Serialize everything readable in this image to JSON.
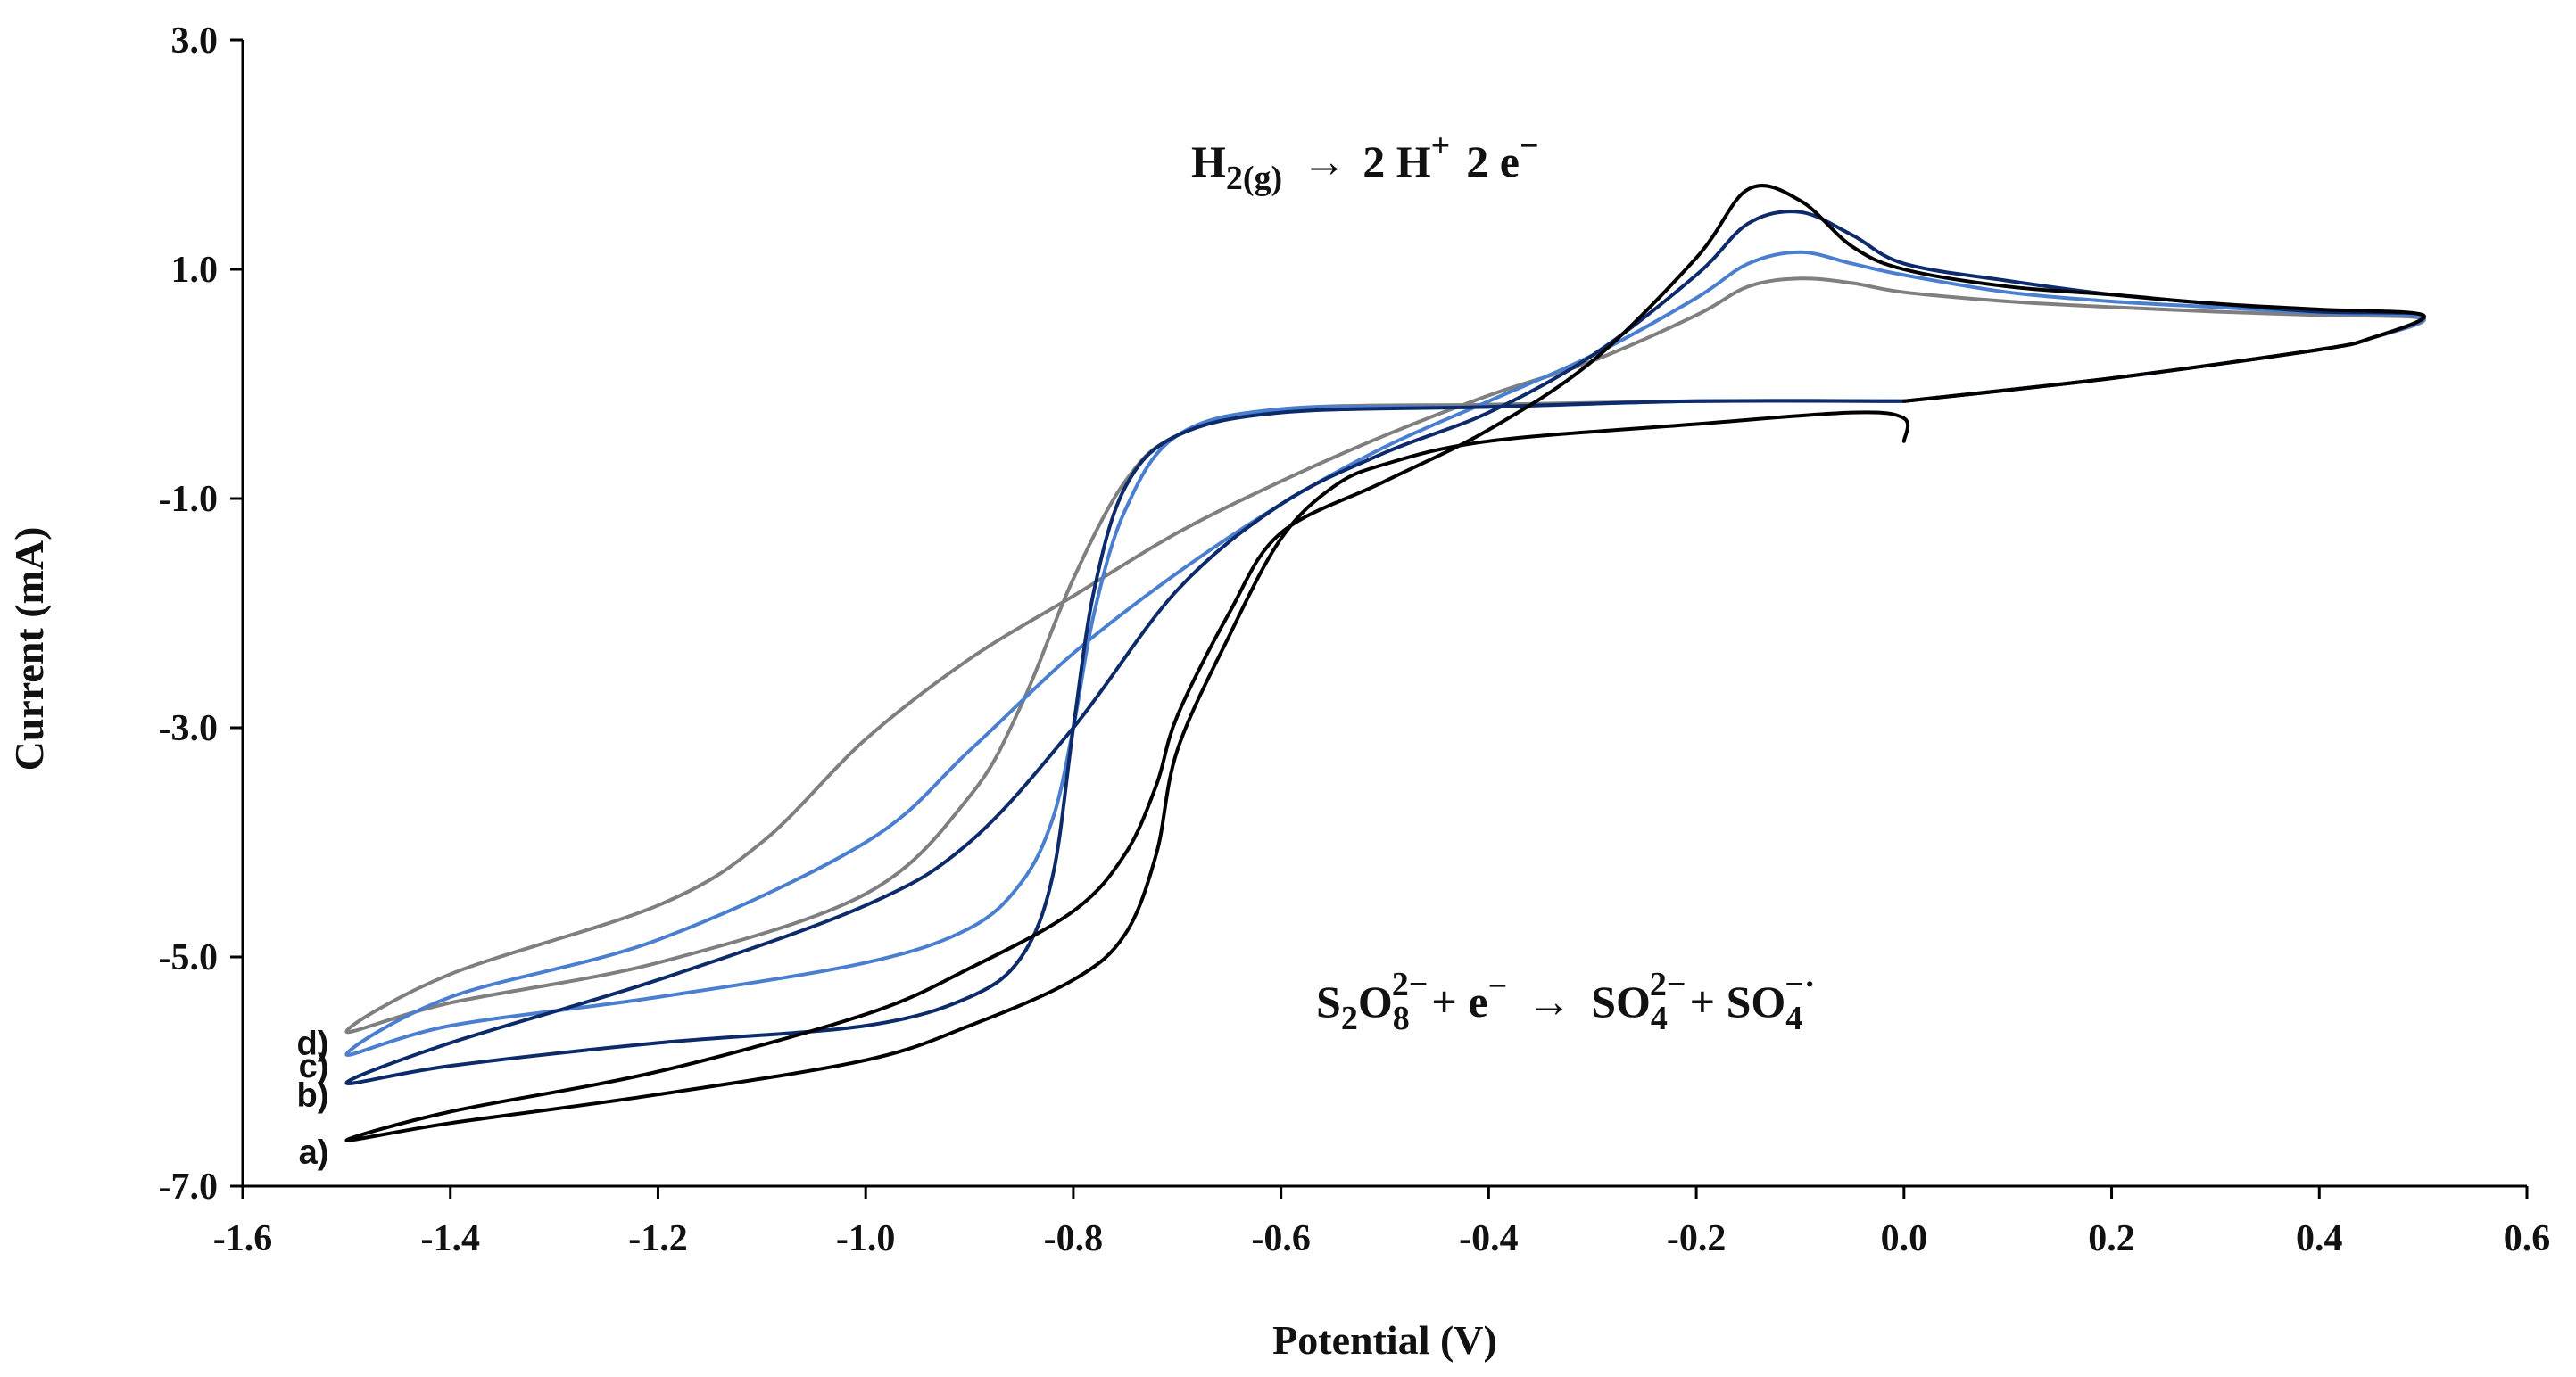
{
  "chart_data": {
    "type": "line",
    "title": "",
    "xlabel": "Potential (V)",
    "ylabel": "Current (mA)",
    "xlim": [
      -1.6,
      0.6
    ],
    "ylim": [
      -7.0,
      3.0
    ],
    "xticks": [
      -1.6,
      -1.4,
      -1.2,
      -1.0,
      -0.8,
      -0.6,
      -0.4,
      -0.2,
      0.0,
      0.2,
      0.4,
      0.6
    ],
    "xtick_labels": [
      "-1.6",
      "-1.4",
      "-1.2",
      "-1.0",
      "-0.8",
      "-0.6",
      "-0.4",
      "-0.2",
      "0.0",
      "0.2",
      "0.4",
      "0.6"
    ],
    "yticks": [
      3.0,
      1.0,
      -1.0,
      -3.0,
      -5.0,
      -7.0
    ],
    "ytick_labels": [
      "3.0",
      "1.0",
      "-1.0",
      "-3.0",
      "-5.0",
      "-7.0"
    ],
    "grid": false,
    "annotations": {
      "oxidation": {
        "lhs": "H",
        "lhs_sub": "2(g)",
        "arrow": "→",
        "rhs": "2 H",
        "rhs_sup": "+",
        "rest": "2 e",
        "rest_sup": "−"
      },
      "reduction": {
        "p1": "S",
        "p1_sub": "2",
        "p2": "O",
        "p2_sub": "8",
        "p2_sup": "2−",
        "p3": "+ e",
        "p3_sup": "−",
        "arrow": "→",
        "p4": "SO",
        "p4_sub": "4",
        "p4_sup": "2−",
        "p5": "+ SO",
        "p5_sub": "4",
        "p5_sup": "−·"
      }
    },
    "series": [
      {
        "name": "a)",
        "color": "#000000",
        "x": [
          0.0,
          0.0,
          -0.05,
          -0.2,
          -0.4,
          -0.5,
          -0.55,
          -0.6,
          -0.65,
          -0.7,
          -0.72,
          -0.75,
          -0.8,
          -0.9,
          -1.0,
          -1.2,
          -1.4,
          -1.5,
          -1.4,
          -1.2,
          -1.0,
          -0.9,
          -0.8,
          -0.75,
          -0.72,
          -0.7,
          -0.65,
          -0.6,
          -0.5,
          -0.4,
          -0.3,
          -0.2,
          -0.15,
          -0.1,
          -0.05,
          0.0,
          0.1,
          0.2,
          0.3,
          0.4,
          0.5,
          0.45,
          0.4,
          0.2,
          0.0
        ],
        "y": [
          -0.5,
          -0.3,
          -0.25,
          -0.35,
          -0.5,
          -0.7,
          -0.9,
          -1.35,
          -2.2,
          -3.2,
          -4.1,
          -4.8,
          -5.2,
          -5.6,
          -5.9,
          -6.2,
          -6.45,
          -6.6,
          -6.35,
          -6.0,
          -5.5,
          -5.1,
          -4.6,
          -4.1,
          -3.5,
          -2.9,
          -2.0,
          -1.3,
          -0.85,
          -0.4,
          0.2,
          1.1,
          1.7,
          1.6,
          1.2,
          1.0,
          0.85,
          0.78,
          0.7,
          0.65,
          0.6,
          0.4,
          0.3,
          0.05,
          -0.15
        ]
      },
      {
        "name": "b)",
        "color": "#0d2b6b",
        "x": [
          0.0,
          -0.2,
          -0.4,
          -0.6,
          -0.7,
          -0.75,
          -0.78,
          -0.8,
          -0.82,
          -0.85,
          -0.9,
          -1.0,
          -1.2,
          -1.4,
          -1.5,
          -1.4,
          -1.2,
          -1.0,
          -0.9,
          -0.8,
          -0.7,
          -0.6,
          -0.5,
          -0.4,
          -0.3,
          -0.2,
          -0.15,
          -0.1,
          -0.05,
          0.0,
          0.1,
          0.2,
          0.3,
          0.4,
          0.5,
          0.45,
          0.4,
          0.2,
          0.0
        ],
        "y": [
          -0.15,
          -0.15,
          -0.2,
          -0.25,
          -0.45,
          -0.9,
          -1.8,
          -3.0,
          -4.3,
          -5.0,
          -5.35,
          -5.6,
          -5.75,
          -5.95,
          -6.1,
          -5.75,
          -5.2,
          -4.55,
          -4.0,
          -3.0,
          -1.8,
          -1.05,
          -0.6,
          -0.25,
          0.25,
          0.95,
          1.4,
          1.5,
          1.3,
          1.05,
          0.9,
          0.78,
          0.7,
          0.63,
          0.6,
          0.4,
          0.3,
          0.05,
          -0.15
        ]
      },
      {
        "name": "c)",
        "color": "#4a7fd0",
        "x": [
          0.0,
          -0.2,
          -0.4,
          -0.6,
          -0.7,
          -0.75,
          -0.78,
          -0.8,
          -0.82,
          -0.85,
          -0.9,
          -1.0,
          -1.2,
          -1.4,
          -1.5,
          -1.4,
          -1.2,
          -1.0,
          -0.9,
          -0.8,
          -0.7,
          -0.6,
          -0.5,
          -0.4,
          -0.3,
          -0.2,
          -0.15,
          -0.1,
          -0.05,
          0.0,
          0.1,
          0.2,
          0.3,
          0.4,
          0.5,
          0.45,
          0.4,
          0.2,
          0.0
        ],
        "y": [
          -0.15,
          -0.15,
          -0.2,
          -0.22,
          -0.45,
          -1.1,
          -2.0,
          -3.0,
          -3.8,
          -4.35,
          -4.75,
          -5.05,
          -5.35,
          -5.6,
          -5.85,
          -5.35,
          -4.85,
          -4.0,
          -3.2,
          -2.35,
          -1.65,
          -1.05,
          -0.55,
          -0.15,
          0.25,
          0.75,
          1.05,
          1.15,
          1.05,
          0.95,
          0.8,
          0.72,
          0.67,
          0.62,
          0.58,
          0.4,
          0.3,
          0.05,
          -0.15
        ]
      },
      {
        "name": "d)",
        "color": "#7f7f7f",
        "x": [
          0.0,
          -0.2,
          -0.4,
          -0.6,
          -0.7,
          -0.75,
          -0.8,
          -0.85,
          -0.9,
          -1.0,
          -1.2,
          -1.4,
          -1.5,
          -1.4,
          -1.2,
          -1.1,
          -1.0,
          -0.9,
          -0.8,
          -0.7,
          -0.6,
          -0.5,
          -0.4,
          -0.3,
          -0.2,
          -0.15,
          -0.1,
          -0.05,
          0.0,
          0.1,
          0.2,
          0.3,
          0.4,
          0.5,
          0.45,
          0.4,
          0.2,
          0.0
        ],
        "y": [
          -0.15,
          -0.15,
          -0.18,
          -0.22,
          -0.45,
          -0.85,
          -1.7,
          -2.8,
          -3.6,
          -4.45,
          -5.05,
          -5.4,
          -5.65,
          -5.15,
          -4.55,
          -4.0,
          -3.1,
          -2.4,
          -1.85,
          -1.3,
          -0.85,
          -0.45,
          -0.1,
          0.2,
          0.6,
          0.85,
          0.92,
          0.88,
          0.8,
          0.72,
          0.67,
          0.63,
          0.6,
          0.57,
          0.4,
          0.3,
          0.05,
          -0.15
        ]
      }
    ]
  }
}
